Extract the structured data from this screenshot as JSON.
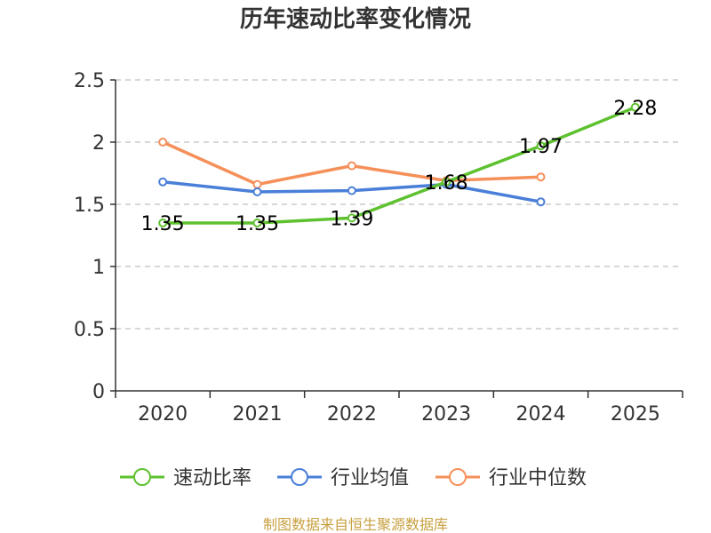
{
  "chart_data": {
    "type": "line",
    "title": "历年速动比率变化情况",
    "xlabel": "",
    "ylabel": "",
    "categories": [
      "2020",
      "2021",
      "2022",
      "2023",
      "2024",
      "2025"
    ],
    "ylim": [
      0,
      2.5
    ],
    "yticks": [
      "0",
      "0.5",
      "1",
      "1.5",
      "2",
      "2.5"
    ],
    "grid": true,
    "legend_position": "bottom",
    "series": [
      {
        "name": "速动比率",
        "color": "#5ec12f",
        "values": [
          1.35,
          1.35,
          1.39,
          1.68,
          1.97,
          2.28
        ],
        "labels": [
          "1.35",
          "1.35",
          "1.39",
          "1.68",
          "1.97",
          "2.28"
        ]
      },
      {
        "name": "行业均值",
        "color": "#4a7fd9",
        "values": [
          1.68,
          1.6,
          1.61,
          1.66,
          1.52,
          null
        ]
      },
      {
        "name": "行业中位数",
        "color": "#f5905a",
        "values": [
          2.0,
          1.66,
          1.81,
          1.69,
          1.72,
          null
        ]
      }
    ]
  },
  "footer": {
    "source": "制图数据来自恒生聚源数据库"
  }
}
